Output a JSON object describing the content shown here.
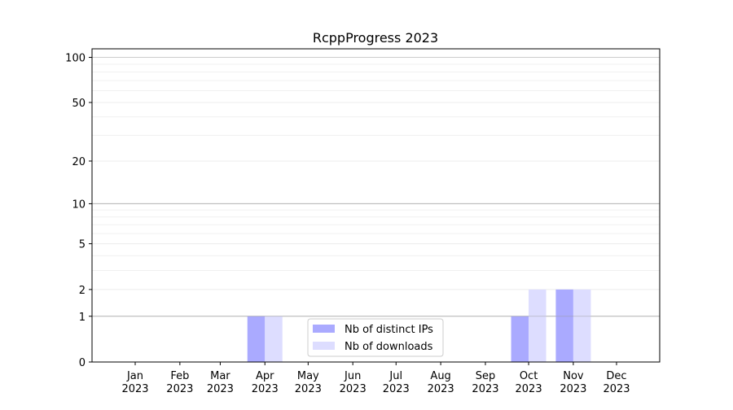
{
  "chart_data": {
    "type": "bar",
    "title": "RcppProgress 2023",
    "xlabel": "",
    "ylabel": "",
    "y_scale": "log(1+y)",
    "ylim": [
      0,
      114
    ],
    "grid": true,
    "legend_position": "lower-center",
    "y_ticks": [
      0,
      1,
      2,
      5,
      10,
      20,
      50,
      100
    ],
    "x_ticks": [
      {
        "date": "2023-01-01",
        "label": [
          "Jan",
          "2023"
        ]
      },
      {
        "date": "2023-02-01",
        "label": [
          "Feb",
          "2023"
        ]
      },
      {
        "date": "2023-03-01",
        "label": [
          "Mar",
          "2023"
        ]
      },
      {
        "date": "2023-04-01",
        "label": [
          "Apr",
          "2023"
        ]
      },
      {
        "date": "2023-05-01",
        "label": [
          "May",
          "2023"
        ]
      },
      {
        "date": "2023-06-01",
        "label": [
          "Jun",
          "2023"
        ]
      },
      {
        "date": "2023-07-01",
        "label": [
          "Jul",
          "2023"
        ]
      },
      {
        "date": "2023-08-01",
        "label": [
          "Aug",
          "2023"
        ]
      },
      {
        "date": "2023-09-01",
        "label": [
          "Sep",
          "2023"
        ]
      },
      {
        "date": "2023-10-01",
        "label": [
          "Oct",
          "2023"
        ]
      },
      {
        "date": "2023-11-01",
        "label": [
          "Nov",
          "2023"
        ]
      },
      {
        "date": "2023-12-01",
        "label": [
          "Dec",
          "2023"
        ]
      }
    ],
    "x": [
      "2023-04-01",
      "2023-10-01",
      "2023-11-01"
    ],
    "series": [
      {
        "name": "Nb of distinct IPs",
        "values": [
          1,
          1,
          2
        ],
        "color": "#aaaaff",
        "side": "left"
      },
      {
        "name": "Nb of downloads",
        "values": [
          1,
          2,
          2
        ],
        "color": "#ddddff",
        "side": "right"
      }
    ]
  }
}
